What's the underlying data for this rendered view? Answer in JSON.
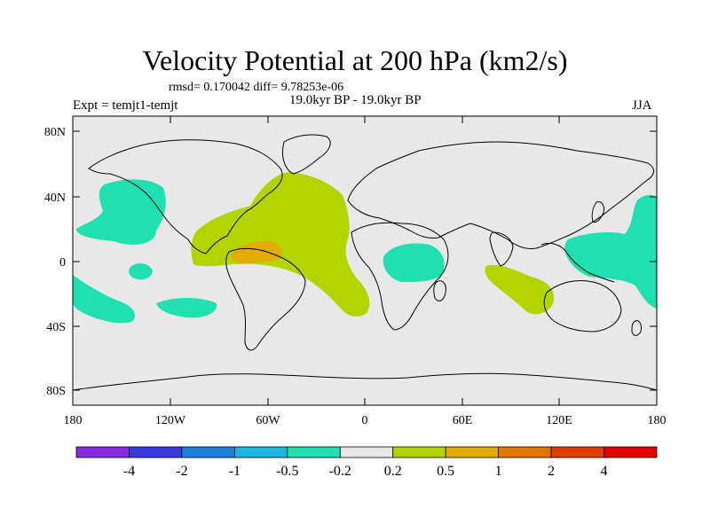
{
  "title": "Velocity Potential at 200 hPa (km2/s)",
  "stats": "rmsd= 0.170042 diff= 9.78253e-06",
  "experiment": "Expt = temjt1-temjt",
  "period": "19.0kyr BP - 19.0kyr BP",
  "season": "JJA",
  "lat_labels": [
    "80N",
    "40N",
    "0",
    "40S",
    "80S"
  ],
  "lon_labels": [
    "180",
    "120W",
    "60W",
    "0",
    "60E",
    "120E",
    "180"
  ],
  "colorbar": {
    "colors": [
      "#8a2be2",
      "#3a3adc",
      "#1e7fd8",
      "#1ab8e0",
      "#20e0b0",
      "#e8e8e8",
      "#b4d400",
      "#e2ac00",
      "#e27400",
      "#e23c00",
      "#e00000"
    ],
    "labels": [
      "-4",
      "-2",
      "-1",
      "-0.5",
      "-0.2",
      "0.2",
      "0.5",
      "1",
      "2",
      "4"
    ]
  },
  "colors": {
    "ocean_background": "#e8e8e8",
    "positive_level1": "#b4d400",
    "positive_level2": "#e2ac00",
    "negative_level1": "#20e0b0"
  }
}
